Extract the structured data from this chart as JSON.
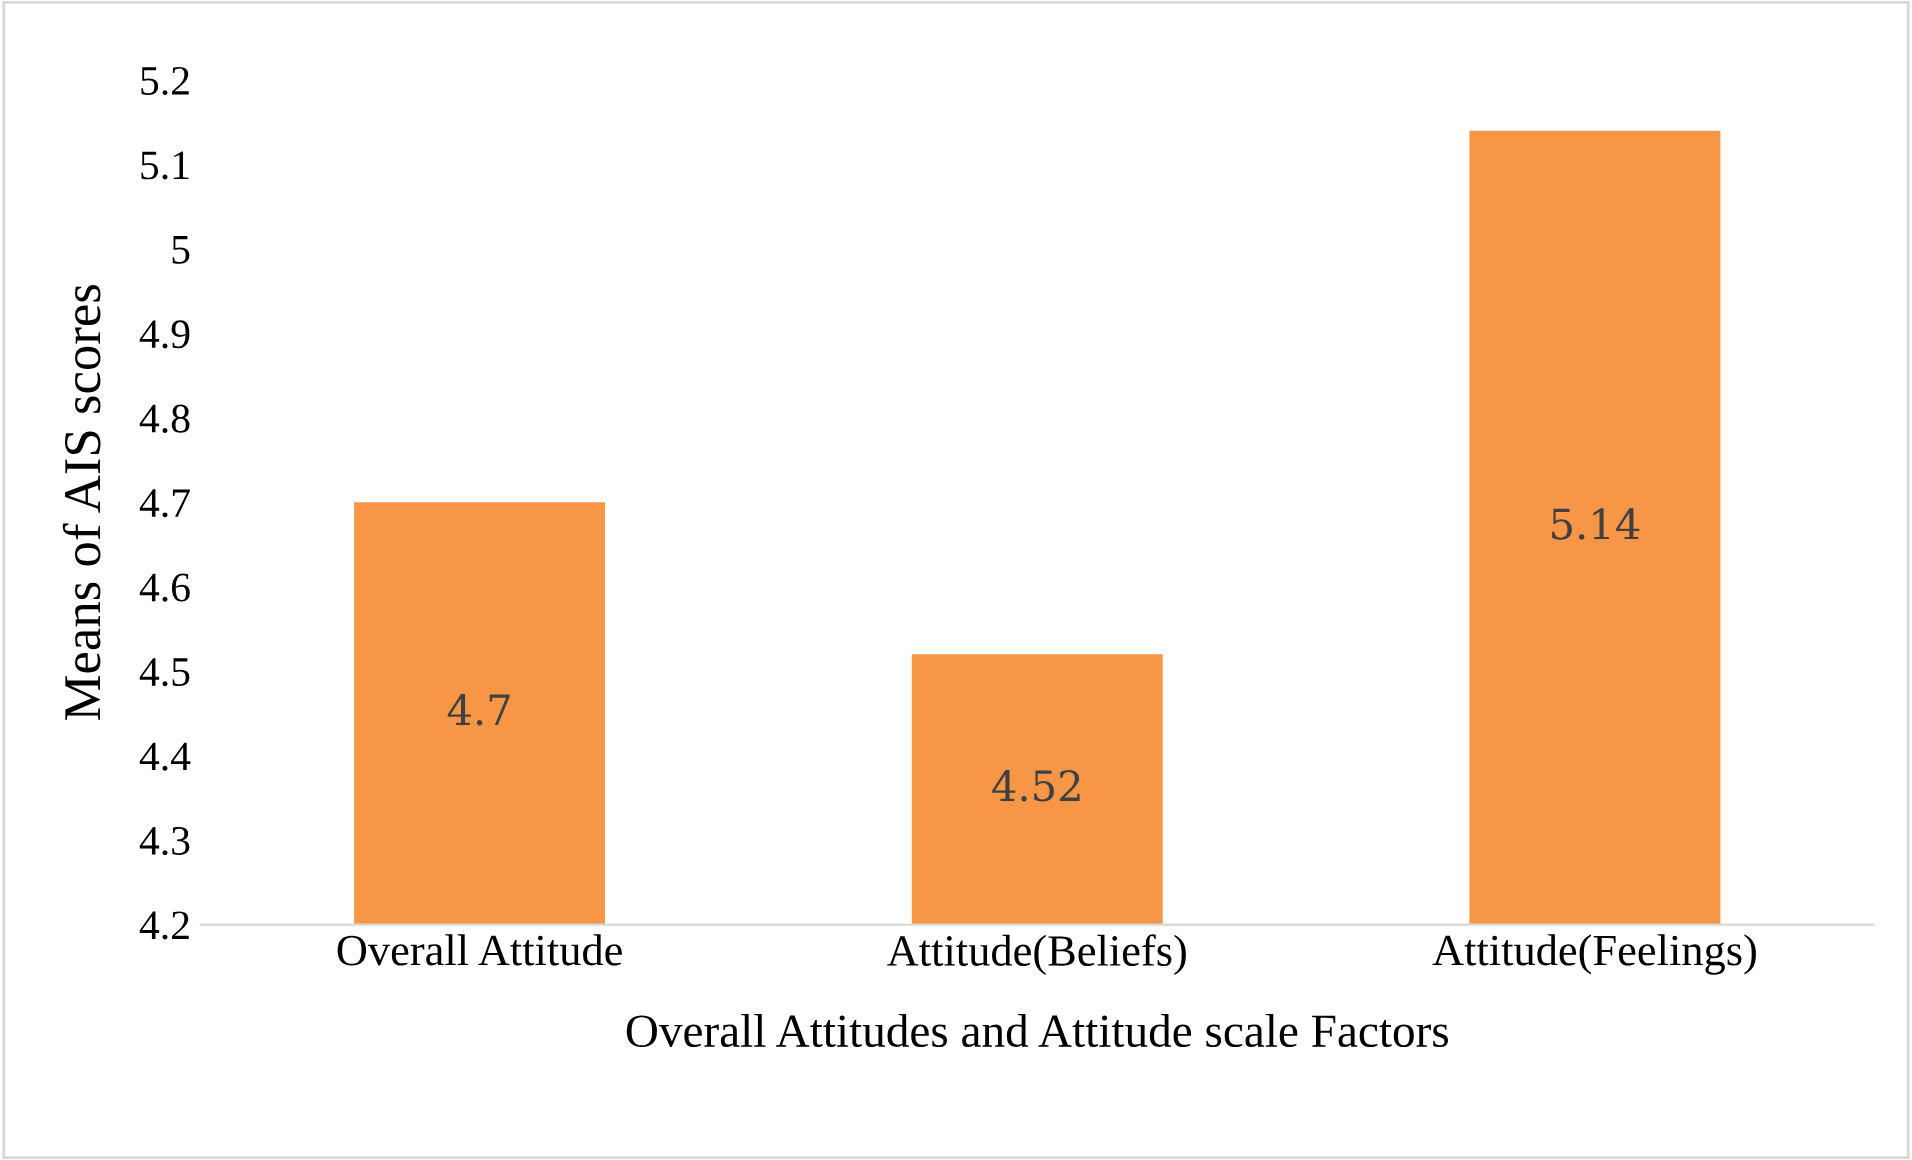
{
  "chart_data": {
    "type": "bar",
    "xlabel": "Overall Attitudes and Attitude scale Factors",
    "ylabel": "Means of AIS scores",
    "categories": [
      "Overall Attitude",
      "Attitude(Beliefs)",
      "Attitude(Feelings)"
    ],
    "values": [
      4.7,
      4.52,
      5.14
    ],
    "color": "#f79646",
    "value_labels": [
      "4.7",
      "4.52",
      "5.14"
    ],
    "ylim": [
      4.2,
      5.2
    ],
    "yticks": [
      4.2,
      4.3,
      4.4,
      4.5,
      4.6,
      4.7,
      4.8,
      4.9,
      {
        "value": 5.0,
        "label": "5"
      },
      5.1,
      5.2
    ],
    "grid": false
  }
}
